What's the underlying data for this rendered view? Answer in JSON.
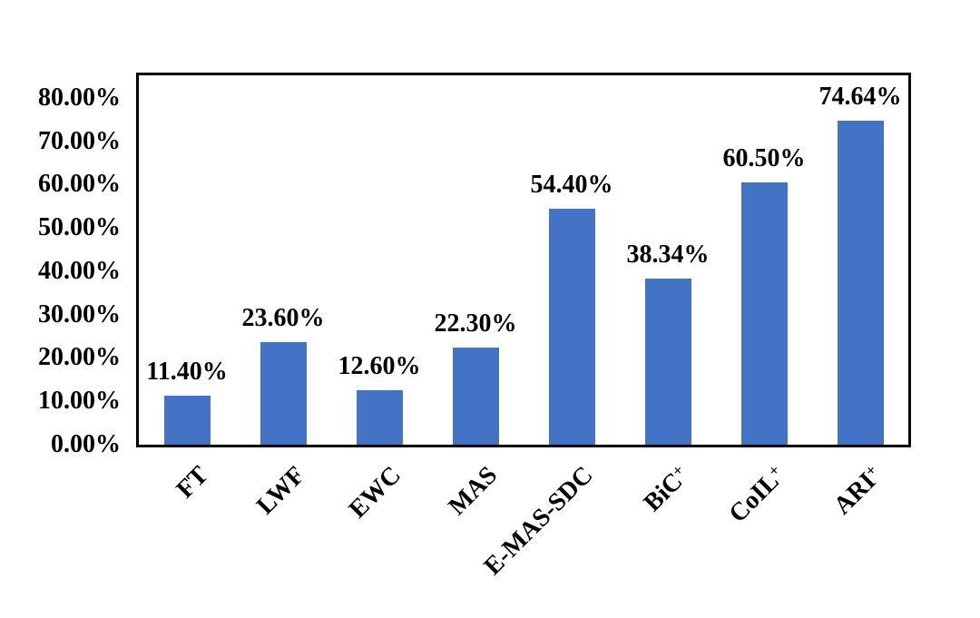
{
  "figure": {
    "background": "#ffffff"
  },
  "chart_data": {
    "type": "bar",
    "categories": [
      "FT",
      "LWF",
      "EWC",
      "MAS",
      "E-MAS-SDC",
      "BiC+",
      "CoIL+",
      "ARI+"
    ],
    "values": [
      11.4,
      23.6,
      12.6,
      22.3,
      54.4,
      38.34,
      60.5,
      74.64
    ],
    "bar_labels": [
      "11.40%",
      "23.60%",
      "12.60%",
      "22.30%",
      "54.40%",
      "38.34%",
      "60.50%",
      "74.64%"
    ],
    "xlabel": "",
    "ylabel": "",
    "yticks": [
      0,
      10,
      20,
      30,
      40,
      50,
      60,
      70,
      80
    ],
    "ytick_labels": [
      "0.00%",
      "10.00%",
      "20.00%",
      "30.00%",
      "40.00%",
      "50.00%",
      "60.00%",
      "70.00%",
      "80.00%"
    ],
    "ylim": [
      0,
      85.2
    ],
    "grid": false,
    "legend": "none",
    "bar_color": "#4472C4",
    "axis_frame_color": "#000000",
    "text_color": "#000000"
  }
}
